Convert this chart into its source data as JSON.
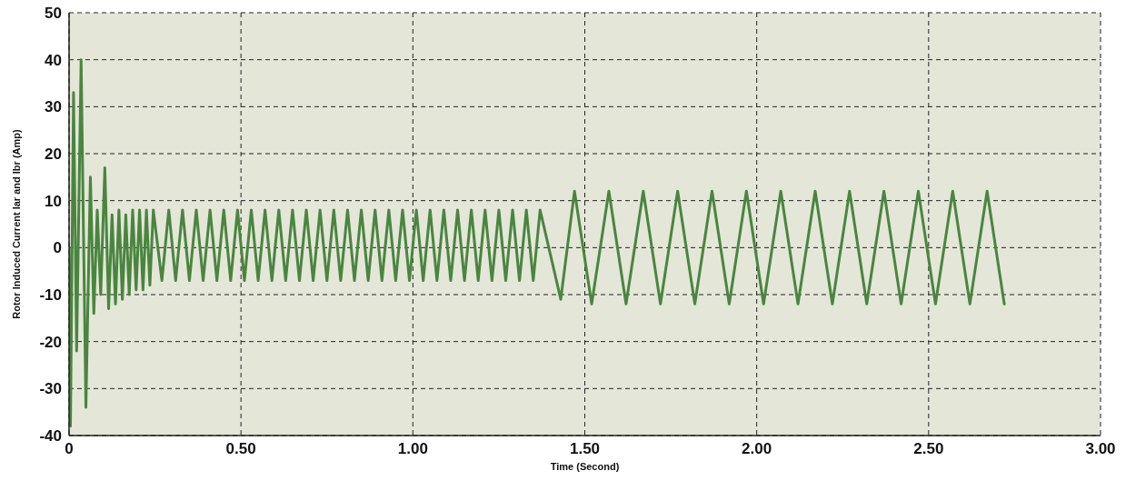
{
  "chart_data": {
    "type": "line",
    "xlabel": "Time (Second)",
    "ylabel": "Rotor Induced Current Iar and Ibr (Amp)",
    "x": [
      0,
      0.004,
      0.013,
      0.022,
      0.035,
      0.049,
      0.062,
      0.072,
      0.082,
      0.092,
      0.104,
      0.115,
      0.125,
      0.135,
      0.145,
      0.155,
      0.165,
      0.175,
      0.185,
      0.195,
      0.205,
      0.215,
      0.225,
      0.235,
      0.245,
      0.27,
      0.29,
      0.31,
      0.33,
      0.35,
      0.37,
      0.39,
      0.41,
      0.43,
      0.45,
      0.47,
      0.49,
      0.51,
      0.53,
      0.55,
      0.57,
      0.59,
      0.61,
      0.63,
      0.65,
      0.67,
      0.69,
      0.71,
      0.73,
      0.75,
      0.77,
      0.79,
      0.81,
      0.83,
      0.85,
      0.87,
      0.89,
      0.91,
      0.93,
      0.95,
      0.97,
      0.99,
      1.01,
      1.03,
      1.05,
      1.07,
      1.09,
      1.11,
      1.13,
      1.15,
      1.17,
      1.19,
      1.21,
      1.23,
      1.25,
      1.27,
      1.29,
      1.31,
      1.33,
      1.35,
      1.37,
      1.43,
      1.47,
      1.52,
      1.57,
      1.62,
      1.67,
      1.72,
      1.77,
      1.82,
      1.87,
      1.92,
      1.97,
      2.02,
      2.07,
      2.12,
      2.17,
      2.22,
      2.27,
      2.32,
      2.37,
      2.42,
      2.47,
      2.52,
      2.57,
      2.62,
      2.67,
      2.72
    ],
    "series": [
      {
        "color": "#4a8540",
        "values": [
          0,
          -38,
          33,
          -22,
          40,
          -34,
          15,
          -14,
          8,
          -10,
          17,
          -13,
          7,
          -12,
          8,
          -11,
          7,
          -10,
          8,
          -9,
          8,
          -9,
          8,
          -8,
          8,
          -7,
          8,
          -7,
          8,
          -7,
          8,
          -7,
          8,
          -7,
          8,
          -7,
          8,
          -7,
          8,
          -7,
          8,
          -7,
          8,
          -7,
          8,
          -7,
          8,
          -7,
          8,
          -7,
          8,
          -7,
          8,
          -7,
          8,
          -7,
          8,
          -7,
          8,
          -7,
          8,
          -7,
          8,
          -7,
          8,
          -7,
          8,
          -7,
          8,
          -7,
          8,
          -7,
          8,
          -7,
          8,
          -7,
          8,
          -7,
          8,
          -7,
          8,
          -11,
          12,
          -12,
          12,
          -12,
          12,
          -12,
          12,
          -12,
          12,
          -12,
          12,
          -12,
          12,
          -12,
          12,
          -12,
          12,
          -12,
          12,
          -12,
          12,
          -12,
          12,
          -12,
          12,
          -12
        ]
      }
    ],
    "xlim": [
      0,
      3
    ],
    "xticks": [
      0,
      {
        "value": 0.5,
        "label": "0.50"
      },
      {
        "value": 1,
        "label": "1.00"
      },
      {
        "value": 1.5,
        "label": "1.50"
      },
      {
        "value": 2,
        "label": "2.00"
      },
      {
        "value": 2.5,
        "label": "2.50"
      },
      {
        "value": 3,
        "label": "3.00"
      }
    ],
    "ylim": [
      -40,
      50
    ],
    "yticks": [
      -40,
      -30,
      -20,
      -10,
      0,
      10,
      20,
      30,
      40,
      50
    ],
    "grid": true
  }
}
